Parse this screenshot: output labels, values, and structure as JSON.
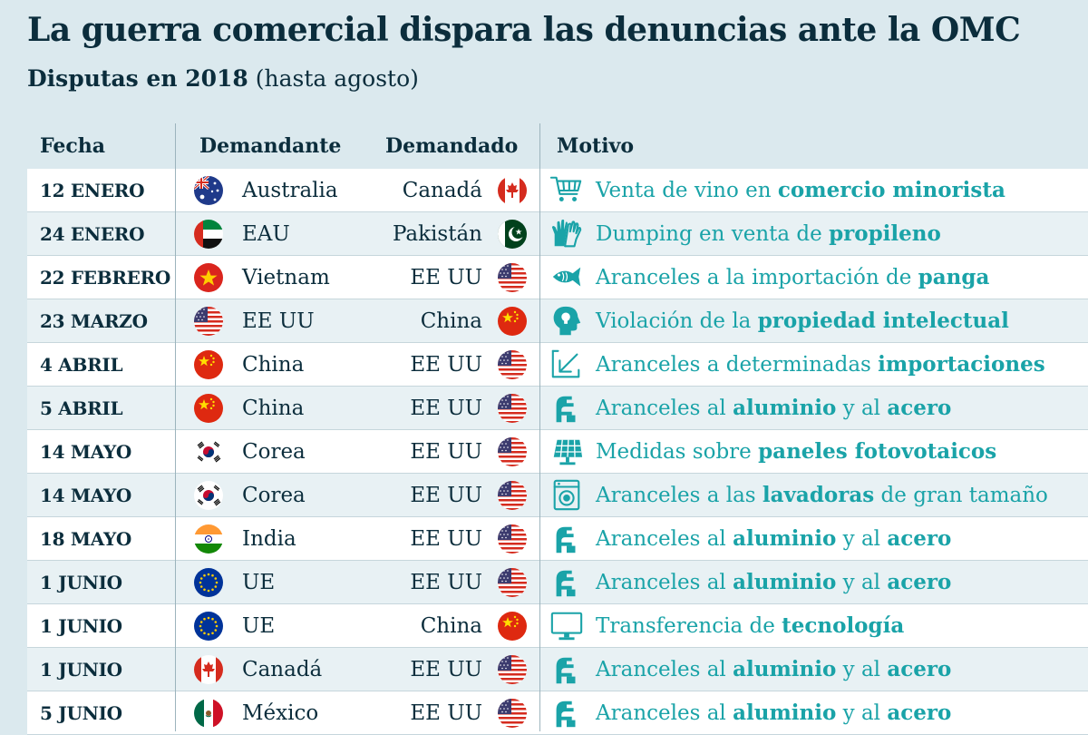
{
  "title": "La guerra comercial dispara las denuncias ante la OMC",
  "subtitle": {
    "bold": "Disputas en 2018",
    "normal": "(hasta agosto)"
  },
  "headers": {
    "date": "Fecha",
    "complainant": "Demandante",
    "respondent": "Demandado",
    "motive": "Motivo"
  },
  "colors": {
    "motive": "#1aa3a8",
    "text": "#0b2d3c",
    "background": "#dbe9ee"
  },
  "rows": [
    {
      "date": "12 ENERO",
      "complainant": "Australia",
      "complainant_flag": "australia-flag",
      "respondent": "Canadá",
      "respondent_flag": "canada-flag",
      "icon": "shopping-cart-icon",
      "motive": [
        {
          "t": "Venta de vino en "
        },
        {
          "t": "comercio minorista",
          "b": true
        }
      ]
    },
    {
      "date": "24 ENERO",
      "complainant": "EAU",
      "complainant_flag": "uae-flag",
      "respondent": "Pakistán",
      "respondent_flag": "pakistan-flag",
      "icon": "gloves-icon",
      "motive": [
        {
          "t": "Dumping en venta de "
        },
        {
          "t": "propileno",
          "b": true
        }
      ]
    },
    {
      "date": "22 FEBRERO",
      "complainant": "Vietnam",
      "complainant_flag": "vietnam-flag",
      "respondent": "EE UU",
      "respondent_flag": "usa-flag",
      "icon": "fish-icon",
      "motive": [
        {
          "t": "Aranceles a la importación de "
        },
        {
          "t": "panga",
          "b": true
        }
      ]
    },
    {
      "date": "23 MARZO",
      "complainant": "EE UU",
      "complainant_flag": "usa-flag",
      "respondent": "China",
      "respondent_flag": "china-flag",
      "icon": "head-lightbulb-icon",
      "motive": [
        {
          "t": "Violación de la "
        },
        {
          "t": "propiedad intelectual",
          "b": true
        }
      ]
    },
    {
      "date": "4 ABRIL",
      "complainant": "China",
      "complainant_flag": "china-flag",
      "respondent": "EE UU",
      "respondent_flag": "usa-flag",
      "icon": "import-arrow-icon",
      "motive": [
        {
          "t": "Aranceles a determinadas "
        },
        {
          "t": "importaciones",
          "b": true
        }
      ]
    },
    {
      "date": "5 ABRIL",
      "complainant": "China",
      "complainant_flag": "china-flag",
      "respondent": "EE UU",
      "respondent_flag": "usa-flag",
      "icon": "steel-beam-icon",
      "motive": [
        {
          "t": "Aranceles al "
        },
        {
          "t": "aluminio",
          "b": true
        },
        {
          "t": " y al "
        },
        {
          "t": "acero",
          "b": true
        }
      ]
    },
    {
      "date": "14 MAYO",
      "complainant": "Corea",
      "complainant_flag": "korea-flag",
      "respondent": "EE UU",
      "respondent_flag": "usa-flag",
      "icon": "solar-panel-icon",
      "motive": [
        {
          "t": "Medidas sobre "
        },
        {
          "t": "paneles fotovotaicos",
          "b": true
        }
      ]
    },
    {
      "date": "14 MAYO",
      "complainant": "Corea",
      "complainant_flag": "korea-flag",
      "respondent": "EE UU",
      "respondent_flag": "usa-flag",
      "icon": "washing-machine-icon",
      "motive": [
        {
          "t": "Aranceles a las "
        },
        {
          "t": "lavadoras",
          "b": true
        },
        {
          "t": " de gran tamaño"
        }
      ]
    },
    {
      "date": "18 MAYO",
      "complainant": "India",
      "complainant_flag": "india-flag",
      "respondent": "EE UU",
      "respondent_flag": "usa-flag",
      "icon": "steel-beam-icon",
      "motive": [
        {
          "t": "Aranceles al "
        },
        {
          "t": "aluminio",
          "b": true
        },
        {
          "t": " y al "
        },
        {
          "t": "acero",
          "b": true
        }
      ]
    },
    {
      "date": "1 JUNIO",
      "complainant": "UE",
      "complainant_flag": "eu-flag",
      "respondent": "EE UU",
      "respondent_flag": "usa-flag",
      "icon": "steel-beam-icon",
      "motive": [
        {
          "t": "Aranceles al "
        },
        {
          "t": "aluminio",
          "b": true
        },
        {
          "t": " y al "
        },
        {
          "t": "acero",
          "b": true
        }
      ]
    },
    {
      "date": "1 JUNIO",
      "complainant": "UE",
      "complainant_flag": "eu-flag",
      "respondent": "China",
      "respondent_flag": "china-flag",
      "icon": "computer-monitor-icon",
      "motive": [
        {
          "t": "Transferencia de "
        },
        {
          "t": "tecnología",
          "b": true
        }
      ]
    },
    {
      "date": "1 JUNIO",
      "complainant": "Canadá",
      "complainant_flag": "canada-flag",
      "respondent": "EE UU",
      "respondent_flag": "usa-flag",
      "icon": "steel-beam-icon",
      "motive": [
        {
          "t": "Aranceles al "
        },
        {
          "t": "aluminio",
          "b": true
        },
        {
          "t": " y al "
        },
        {
          "t": "acero",
          "b": true
        }
      ]
    },
    {
      "date": "5 JUNIO",
      "complainant": "México",
      "complainant_flag": "mexico-flag",
      "respondent": "EE UU",
      "respondent_flag": "usa-flag",
      "icon": "steel-beam-icon",
      "motive": [
        {
          "t": "Aranceles al "
        },
        {
          "t": "aluminio",
          "b": true
        },
        {
          "t": " y al "
        },
        {
          "t": "acero",
          "b": true
        }
      ]
    }
  ]
}
